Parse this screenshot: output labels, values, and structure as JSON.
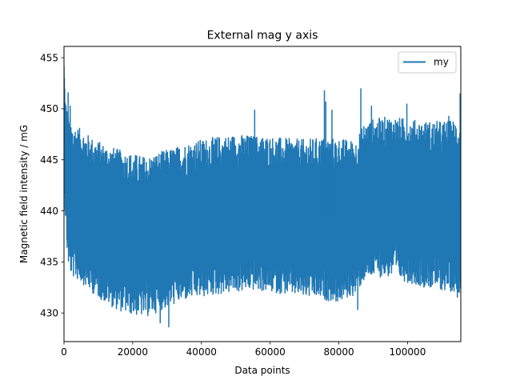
{
  "chart_data": {
    "type": "line",
    "title": "External mag y axis",
    "xlabel": "Data points",
    "ylabel": "Magnetic field intensity / mG",
    "xlim": [
      0,
      115500
    ],
    "ylim": [
      427.2,
      456.1
    ],
    "xticks": [
      0,
      20000,
      40000,
      60000,
      80000,
      100000
    ],
    "yticks": [
      430,
      435,
      440,
      445,
      450,
      455
    ],
    "grid": false,
    "legend": {
      "placement": "top-right"
    },
    "series": [
      {
        "name": "my",
        "color": "#1f77b4",
        "x": [
          0,
          300,
          900,
          1500,
          2500,
          5000,
          8000,
          12000,
          16000,
          20000,
          24000,
          28000,
          32000,
          36000,
          40000,
          45000,
          50000,
          55000,
          60000,
          65000,
          70000,
          75000,
          80000,
          85000,
          87000,
          90000,
          95000,
          100000,
          105000,
          110000,
          115500
        ],
        "upper": [
          455.0,
          451.5,
          450.0,
          449.0,
          448.5,
          448.0,
          447.2,
          446.5,
          446.0,
          445.6,
          445.3,
          445.8,
          446.2,
          446.7,
          447.0,
          447.3,
          447.5,
          447.4,
          447.3,
          447.1,
          447.0,
          447.2,
          447.1,
          446.9,
          448.5,
          449.0,
          449.3,
          449.0,
          448.8,
          448.8,
          449.0
        ],
        "lower": [
          444.5,
          440.0,
          436.0,
          434.0,
          433.5,
          433.0,
          432.0,
          431.0,
          430.2,
          429.8,
          429.6,
          430.2,
          430.8,
          431.3,
          431.5,
          431.8,
          432.0,
          432.2,
          432.0,
          431.8,
          431.5,
          431.3,
          431.0,
          431.8,
          433.0,
          433.5,
          433.5,
          433.0,
          432.5,
          432.2,
          432.0
        ],
        "spikes": [
          {
            "x": 1200,
            "y": 451.6
          },
          {
            "x": 1800,
            "y": 450.3
          },
          {
            "x": 30500,
            "y": 428.6
          },
          {
            "x": 28000,
            "y": 429.0
          },
          {
            "x": 55500,
            "y": 449.9
          },
          {
            "x": 75800,
            "y": 451.8
          },
          {
            "x": 76200,
            "y": 450.7
          },
          {
            "x": 78000,
            "y": 449.9
          },
          {
            "x": 86400,
            "y": 452.0
          },
          {
            "x": 89500,
            "y": 450.3
          },
          {
            "x": 99800,
            "y": 450.5
          },
          {
            "x": 112000,
            "y": 449.3
          },
          {
            "x": 115300,
            "y": 451.5
          },
          {
            "x": 85500,
            "y": 430.3
          },
          {
            "x": 114500,
            "y": 431.5
          }
        ]
      }
    ]
  }
}
